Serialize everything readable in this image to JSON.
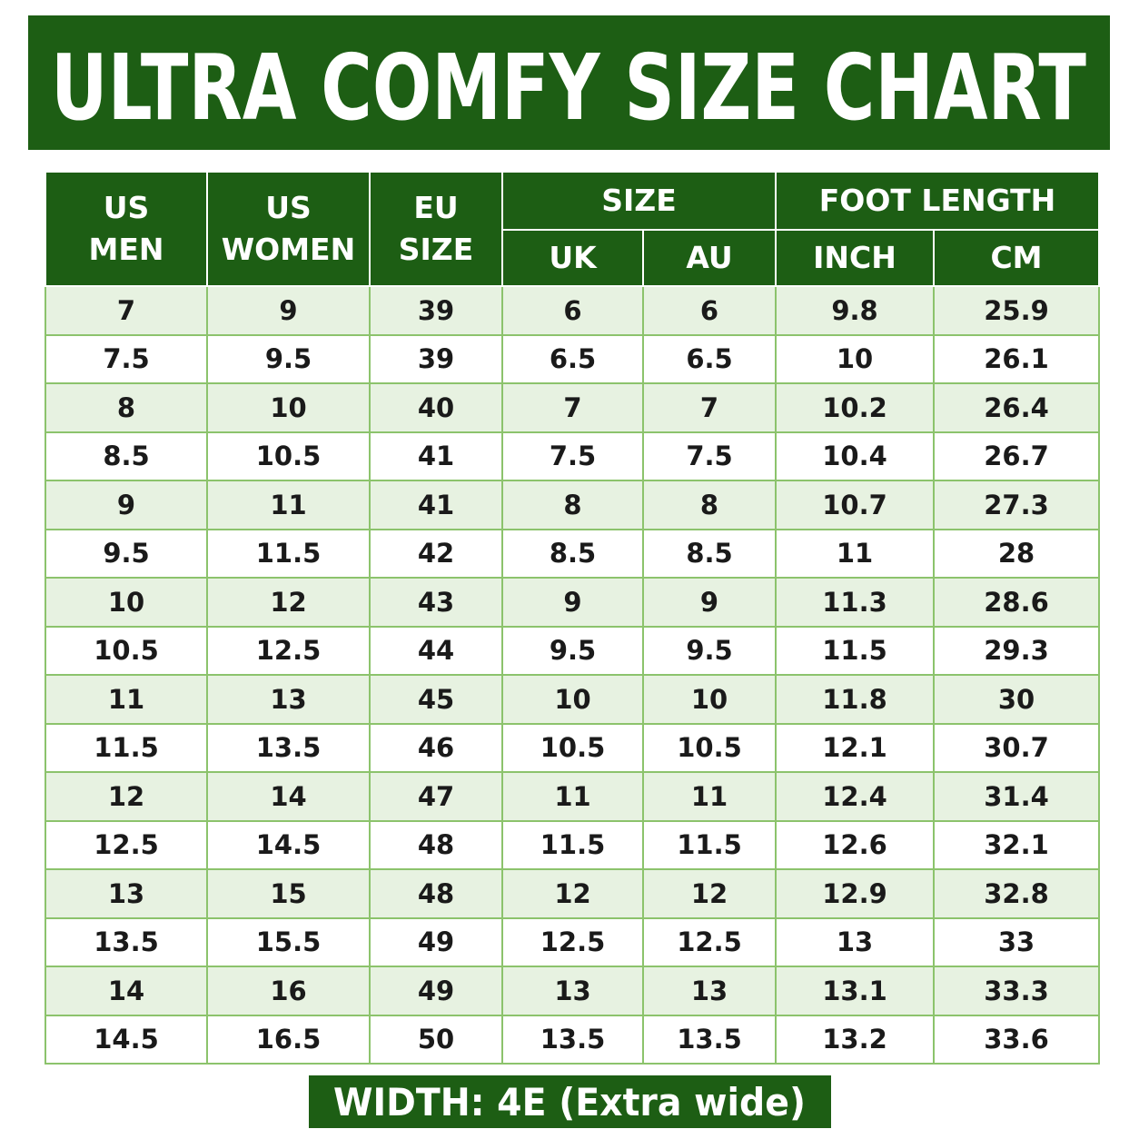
{
  "header": {
    "title": "ULTRA COMFY SIZE CHART"
  },
  "table": {
    "columns": [
      "US\nMEN",
      "US\nWOMEN",
      "EU\nSIZE"
    ],
    "groups": [
      {
        "label": "SIZE",
        "columns": [
          "UK",
          "AU"
        ]
      },
      {
        "label": "FOOT LENGTH",
        "columns": [
          "INCH",
          "CM"
        ]
      }
    ],
    "rows": [
      [
        "7",
        "9",
        "39",
        "6",
        "6",
        "9.8",
        "25.9"
      ],
      [
        "7.5",
        "9.5",
        "39",
        "6.5",
        "6.5",
        "10",
        "26.1"
      ],
      [
        "8",
        "10",
        "40",
        "7",
        "7",
        "10.2",
        "26.4"
      ],
      [
        "8.5",
        "10.5",
        "41",
        "7.5",
        "7.5",
        "10.4",
        "26.7"
      ],
      [
        "9",
        "11",
        "41",
        "8",
        "8",
        "10.7",
        "27.3"
      ],
      [
        "9.5",
        "11.5",
        "42",
        "8.5",
        "8.5",
        "11",
        "28"
      ],
      [
        "10",
        "12",
        "43",
        "9",
        "9",
        "11.3",
        "28.6"
      ],
      [
        "10.5",
        "12.5",
        "44",
        "9.5",
        "9.5",
        "11.5",
        "29.3"
      ],
      [
        "11",
        "13",
        "45",
        "10",
        "10",
        "11.8",
        "30"
      ],
      [
        "11.5",
        "13.5",
        "46",
        "10.5",
        "10.5",
        "12.1",
        "30.7"
      ],
      [
        "12",
        "14",
        "47",
        "11",
        "11",
        "12.4",
        "31.4"
      ],
      [
        "12.5",
        "14.5",
        "48",
        "11.5",
        "11.5",
        "12.6",
        "32.1"
      ],
      [
        "13",
        "15",
        "48",
        "12",
        "12",
        "12.9",
        "32.8"
      ],
      [
        "13.5",
        "15.5",
        "49",
        "12.5",
        "12.5",
        "13",
        "33"
      ],
      [
        "14",
        "16",
        "49",
        "13",
        "13",
        "13.1",
        "33.3"
      ],
      [
        "14.5",
        "16.5",
        "50",
        "13.5",
        "13.5",
        "13.2",
        "33.6"
      ]
    ]
  },
  "footer": {
    "note": "WIDTH: 4E (Extra wide)"
  }
}
